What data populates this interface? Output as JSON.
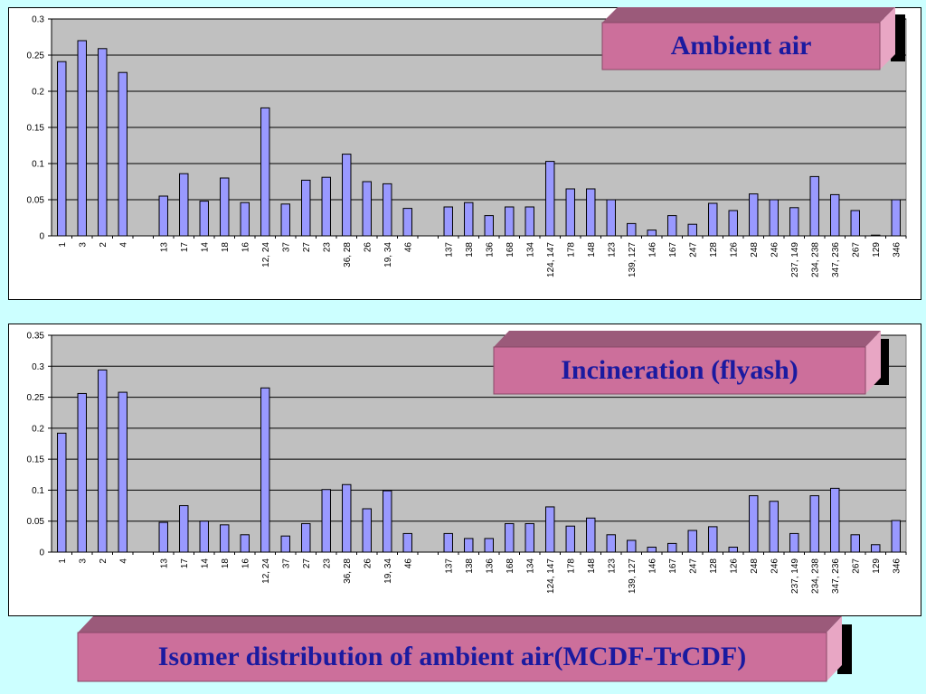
{
  "colors": {
    "bar": "#9999ff",
    "plot_bg": "#c0c0c0",
    "badge_front": "#cc6f9b",
    "badge_top": "#9b5a7a",
    "badge_text": "#1a1aa0"
  },
  "footer_title": "Isomer distribution of ambient air(MCDF-TrCDF)",
  "chart_data": [
    {
      "type": "bar",
      "title": "Ambient air",
      "yticks": [
        "0",
        "0.05",
        "0.1",
        "0.15",
        "0.2",
        "0.25",
        "0.3"
      ],
      "ylim": [
        0,
        0.3
      ],
      "grid": true,
      "categories": [
        "1",
        "3",
        "2",
        "4",
        "",
        "13",
        "17",
        "14",
        "18",
        "16",
        "12, 24",
        "37",
        "27",
        "23",
        "36, 28",
        "26",
        "19, 34",
        "46",
        "",
        "137",
        "138",
        "136",
        "168",
        "134",
        "124, 147",
        "178",
        "148",
        "123",
        "139, 127",
        "146",
        "167",
        "247",
        "128",
        "126",
        "248",
        "246",
        "237, 149",
        "234, 238",
        "347, 236",
        "267",
        "129",
        "346"
      ],
      "values": [
        0.241,
        0.27,
        0.259,
        0.226,
        null,
        0.055,
        0.086,
        0.048,
        0.08,
        0.046,
        0.177,
        0.044,
        0.077,
        0.081,
        0.113,
        0.075,
        0.072,
        0.038,
        null,
        0.04,
        0.046,
        0.028,
        0.04,
        0.04,
        0.103,
        0.065,
        0.065,
        0.05,
        0.017,
        0.008,
        0.028,
        0.016,
        0.045,
        0.035,
        0.058,
        0.05,
        0.039,
        0.082,
        0.057,
        0.035,
        0.001,
        0.05
      ]
    },
    {
      "type": "bar",
      "title": "Incineration (flyash)",
      "yticks": [
        "0",
        "0.05",
        "0.1",
        "0.15",
        "0.2",
        "0.25",
        "0.3",
        "0.35"
      ],
      "ylim": [
        0,
        0.35
      ],
      "grid": true,
      "categories": [
        "1",
        "3",
        "2",
        "4",
        "",
        "13",
        "17",
        "14",
        "18",
        "16",
        "12, 24",
        "37",
        "27",
        "23",
        "36, 28",
        "26",
        "19, 34",
        "46",
        "",
        "137",
        "138",
        "136",
        "168",
        "134",
        "124, 147",
        "178",
        "148",
        "123",
        "139, 127",
        "146",
        "167",
        "247",
        "128",
        "126",
        "248",
        "246",
        "237, 149",
        "234, 238",
        "347, 236",
        "267",
        "129",
        "346"
      ],
      "values": [
        0.192,
        0.256,
        0.294,
        0.258,
        null,
        0.048,
        0.075,
        0.05,
        0.044,
        0.028,
        0.265,
        0.026,
        0.046,
        0.101,
        0.109,
        0.07,
        0.099,
        0.03,
        null,
        0.03,
        0.022,
        0.022,
        0.046,
        0.046,
        0.073,
        0.042,
        0.055,
        0.028,
        0.019,
        0.008,
        0.014,
        0.035,
        0.041,
        0.008,
        0.091,
        0.082,
        0.03,
        0.091,
        0.103,
        0.028,
        0.012,
        0.051
      ]
    }
  ]
}
